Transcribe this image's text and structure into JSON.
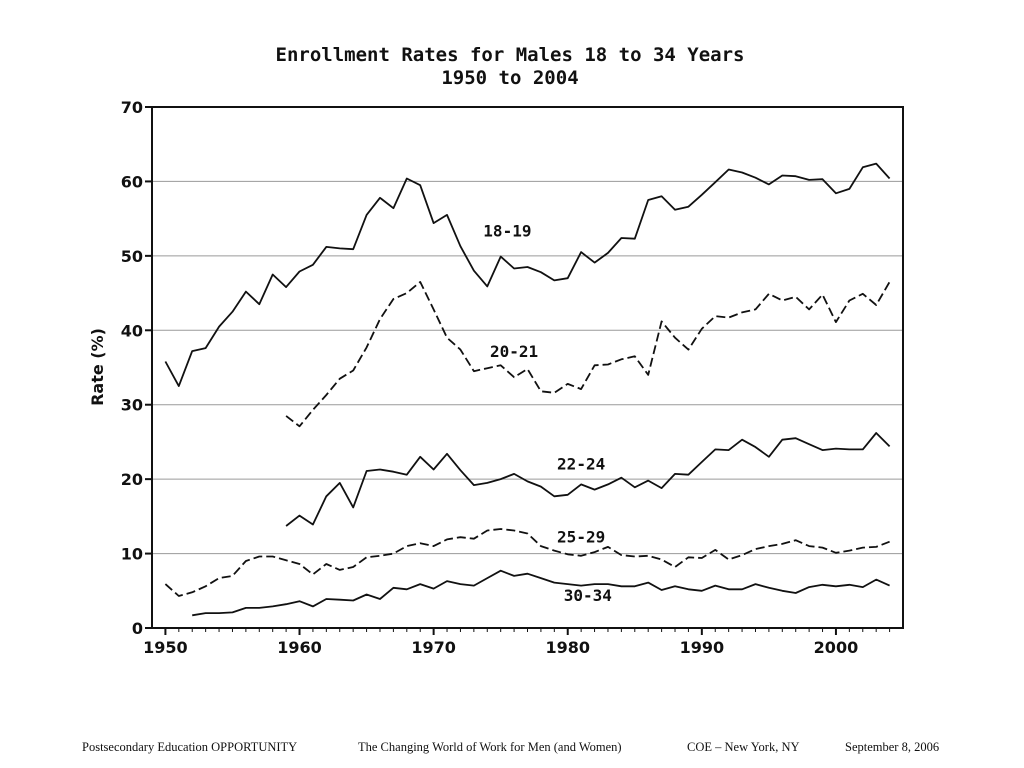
{
  "chart_data": {
    "type": "line",
    "title": "Enrollment Rates for Males 18 to 34 Years",
    "subtitle": "1950 to 2004",
    "xlabel": "",
    "ylabel": "Rate (%)",
    "xlim": [
      1949,
      2005
    ],
    "ylim": [
      0,
      70
    ],
    "xticks": [
      1950,
      1960,
      1970,
      1980,
      1990,
      2000
    ],
    "yticks": [
      0,
      10,
      20,
      30,
      40,
      50,
      60,
      70
    ],
    "grid": "horizontal",
    "series": [
      {
        "name": "18-19",
        "style": "solid",
        "points": [
          [
            1950,
            35.8
          ],
          [
            1951,
            32.5
          ],
          [
            1952,
            37.2
          ],
          [
            1953,
            37.6
          ],
          [
            1954,
            40.5
          ],
          [
            1955,
            42.5
          ],
          [
            1956,
            45.2
          ],
          [
            1957,
            43.5
          ],
          [
            1958,
            47.5
          ],
          [
            1959,
            45.8
          ],
          [
            1960,
            47.9
          ],
          [
            1961,
            48.8
          ],
          [
            1962,
            51.2
          ],
          [
            1963,
            51.0
          ],
          [
            1964,
            50.9
          ],
          [
            1965,
            55.5
          ],
          [
            1966,
            57.8
          ],
          [
            1967,
            56.4
          ],
          [
            1968,
            60.4
          ],
          [
            1969,
            59.5
          ],
          [
            1970,
            54.4
          ],
          [
            1971,
            55.5
          ],
          [
            1972,
            51.3
          ],
          [
            1973,
            48.0
          ],
          [
            1974,
            45.9
          ],
          [
            1975,
            49.9
          ],
          [
            1976,
            48.3
          ],
          [
            1977,
            48.5
          ],
          [
            1978,
            47.8
          ],
          [
            1979,
            46.7
          ],
          [
            1980,
            47.0
          ],
          [
            1981,
            50.5
          ],
          [
            1982,
            49.1
          ],
          [
            1983,
            50.4
          ],
          [
            1984,
            52.4
          ],
          [
            1985,
            52.3
          ],
          [
            1986,
            57.5
          ],
          [
            1987,
            58.0
          ],
          [
            1988,
            56.2
          ],
          [
            1989,
            56.6
          ],
          [
            1990,
            58.2
          ],
          [
            1991,
            59.9
          ],
          [
            1992,
            61.6
          ],
          [
            1993,
            61.2
          ],
          [
            1994,
            60.5
          ],
          [
            1995,
            59.6
          ],
          [
            1996,
            60.8
          ],
          [
            1997,
            60.7
          ],
          [
            1998,
            60.2
          ],
          [
            1999,
            60.3
          ],
          [
            2000,
            58.4
          ],
          [
            2001,
            59.0
          ],
          [
            2002,
            61.9
          ],
          [
            2003,
            62.4
          ],
          [
            2004,
            60.4
          ]
        ]
      },
      {
        "name": "20-21",
        "style": "dashed",
        "points": [
          [
            1959,
            28.5
          ],
          [
            1960,
            27.1
          ],
          [
            1961,
            29.3
          ],
          [
            1962,
            31.3
          ],
          [
            1963,
            33.5
          ],
          [
            1964,
            34.6
          ],
          [
            1965,
            37.7
          ],
          [
            1966,
            41.5
          ],
          [
            1967,
            44.2
          ],
          [
            1968,
            45.0
          ],
          [
            1969,
            46.5
          ],
          [
            1970,
            42.8
          ],
          [
            1971,
            39.0
          ],
          [
            1972,
            37.4
          ],
          [
            1973,
            34.5
          ],
          [
            1974,
            34.9
          ],
          [
            1975,
            35.3
          ],
          [
            1976,
            33.7
          ],
          [
            1977,
            34.8
          ],
          [
            1978,
            31.8
          ],
          [
            1979,
            31.6
          ],
          [
            1980,
            32.8
          ],
          [
            1981,
            32.1
          ],
          [
            1982,
            35.3
          ],
          [
            1983,
            35.4
          ],
          [
            1984,
            36.1
          ],
          [
            1985,
            36.5
          ],
          [
            1986,
            34.0
          ],
          [
            1987,
            41.2
          ],
          [
            1988,
            39.0
          ],
          [
            1989,
            37.4
          ],
          [
            1990,
            40.2
          ],
          [
            1991,
            41.9
          ],
          [
            1992,
            41.7
          ],
          [
            1993,
            42.4
          ],
          [
            1994,
            42.8
          ],
          [
            1995,
            44.9
          ],
          [
            1996,
            44.0
          ],
          [
            1997,
            44.5
          ],
          [
            1998,
            42.8
          ],
          [
            1999,
            44.8
          ],
          [
            2000,
            41.1
          ],
          [
            2001,
            44.0
          ],
          [
            2002,
            44.9
          ],
          [
            2003,
            43.4
          ],
          [
            2004,
            46.5
          ]
        ]
      },
      {
        "name": "22-24",
        "style": "solid",
        "points": [
          [
            1959,
            13.7
          ],
          [
            1960,
            15.1
          ],
          [
            1961,
            13.9
          ],
          [
            1962,
            17.7
          ],
          [
            1963,
            19.5
          ],
          [
            1964,
            16.2
          ],
          [
            1965,
            21.1
          ],
          [
            1966,
            21.3
          ],
          [
            1967,
            21.0
          ],
          [
            1968,
            20.6
          ],
          [
            1969,
            23.0
          ],
          [
            1970,
            21.3
          ],
          [
            1971,
            23.4
          ],
          [
            1972,
            21.2
          ],
          [
            1973,
            19.2
          ],
          [
            1974,
            19.5
          ],
          [
            1975,
            20.0
          ],
          [
            1976,
            20.7
          ],
          [
            1977,
            19.7
          ],
          [
            1978,
            19.0
          ],
          [
            1979,
            17.7
          ],
          [
            1980,
            17.9
          ],
          [
            1981,
            19.3
          ],
          [
            1982,
            18.6
          ],
          [
            1983,
            19.3
          ],
          [
            1984,
            20.2
          ],
          [
            1985,
            18.9
          ],
          [
            1986,
            19.8
          ],
          [
            1987,
            18.8
          ],
          [
            1988,
            20.7
          ],
          [
            1989,
            20.6
          ],
          [
            1990,
            22.3
          ],
          [
            1991,
            24.0
          ],
          [
            1992,
            23.9
          ],
          [
            1993,
            25.3
          ],
          [
            1994,
            24.3
          ],
          [
            1995,
            23.0
          ],
          [
            1996,
            25.3
          ],
          [
            1997,
            25.5
          ],
          [
            1998,
            24.7
          ],
          [
            1999,
            23.9
          ],
          [
            2000,
            24.1
          ],
          [
            2001,
            24.0
          ],
          [
            2002,
            24.0
          ],
          [
            2003,
            26.2
          ],
          [
            2004,
            24.4
          ]
        ]
      },
      {
        "name": "25-29",
        "style": "dashed",
        "points": [
          [
            1950,
            5.9
          ],
          [
            1951,
            4.3
          ],
          [
            1952,
            4.8
          ],
          [
            1953,
            5.6
          ],
          [
            1954,
            6.7
          ],
          [
            1955,
            7.0
          ],
          [
            1956,
            9.0
          ],
          [
            1957,
            9.6
          ],
          [
            1958,
            9.6
          ],
          [
            1959,
            9.1
          ],
          [
            1960,
            8.6
          ],
          [
            1961,
            7.2
          ],
          [
            1962,
            8.6
          ],
          [
            1963,
            7.8
          ],
          [
            1964,
            8.2
          ],
          [
            1965,
            9.5
          ],
          [
            1966,
            9.7
          ],
          [
            1967,
            10.0
          ],
          [
            1968,
            11.0
          ],
          [
            1969,
            11.4
          ],
          [
            1970,
            11.0
          ],
          [
            1971,
            11.9
          ],
          [
            1972,
            12.2
          ],
          [
            1973,
            12.0
          ],
          [
            1974,
            13.1
          ],
          [
            1975,
            13.3
          ],
          [
            1976,
            13.1
          ],
          [
            1977,
            12.7
          ],
          [
            1978,
            11.0
          ],
          [
            1979,
            10.4
          ],
          [
            1980,
            9.9
          ],
          [
            1981,
            9.7
          ],
          [
            1982,
            10.2
          ],
          [
            1983,
            10.9
          ],
          [
            1984,
            9.8
          ],
          [
            1985,
            9.6
          ],
          [
            1986,
            9.7
          ],
          [
            1987,
            9.2
          ],
          [
            1988,
            8.2
          ],
          [
            1989,
            9.5
          ],
          [
            1990,
            9.4
          ],
          [
            1991,
            10.5
          ],
          [
            1992,
            9.2
          ],
          [
            1993,
            9.8
          ],
          [
            1994,
            10.6
          ],
          [
            1995,
            11.0
          ],
          [
            1996,
            11.3
          ],
          [
            1997,
            11.8
          ],
          [
            1998,
            11.0
          ],
          [
            1999,
            10.8
          ],
          [
            2000,
            10.1
          ],
          [
            2001,
            10.4
          ],
          [
            2002,
            10.8
          ],
          [
            2003,
            10.9
          ],
          [
            2004,
            11.6
          ]
        ]
      },
      {
        "name": "30-34",
        "style": "solid",
        "points": [
          [
            1952,
            1.7
          ],
          [
            1953,
            2.0
          ],
          [
            1954,
            2.0
          ],
          [
            1955,
            2.1
          ],
          [
            1956,
            2.7
          ],
          [
            1957,
            2.7
          ],
          [
            1958,
            2.9
          ],
          [
            1959,
            3.2
          ],
          [
            1960,
            3.6
          ],
          [
            1961,
            2.9
          ],
          [
            1962,
            3.9
          ],
          [
            1963,
            3.8
          ],
          [
            1964,
            3.7
          ],
          [
            1965,
            4.5
          ],
          [
            1966,
            3.9
          ],
          [
            1967,
            5.4
          ],
          [
            1968,
            5.2
          ],
          [
            1969,
            5.9
          ],
          [
            1970,
            5.3
          ],
          [
            1971,
            6.3
          ],
          [
            1972,
            5.9
          ],
          [
            1973,
            5.7
          ],
          [
            1974,
            6.7
          ],
          [
            1975,
            7.7
          ],
          [
            1976,
            7.0
          ],
          [
            1977,
            7.3
          ],
          [
            1978,
            6.7
          ],
          [
            1979,
            6.1
          ],
          [
            1980,
            5.9
          ],
          [
            1981,
            5.7
          ],
          [
            1982,
            5.9
          ],
          [
            1983,
            5.9
          ],
          [
            1984,
            5.6
          ],
          [
            1985,
            5.6
          ],
          [
            1986,
            6.1
          ],
          [
            1987,
            5.1
          ],
          [
            1988,
            5.6
          ],
          [
            1989,
            5.2
          ],
          [
            1990,
            5.0
          ],
          [
            1991,
            5.7
          ],
          [
            1992,
            5.2
          ],
          [
            1993,
            5.2
          ],
          [
            1994,
            5.9
          ],
          [
            1995,
            5.4
          ],
          [
            1996,
            5.0
          ],
          [
            1997,
            4.7
          ],
          [
            1998,
            5.5
          ],
          [
            1999,
            5.8
          ],
          [
            2000,
            5.6
          ],
          [
            2001,
            5.8
          ],
          [
            2002,
            5.5
          ],
          [
            2003,
            6.5
          ],
          [
            2004,
            5.7
          ]
        ]
      }
    ],
    "annotations": [
      {
        "text": "18-19",
        "x": 1975.5,
        "y": 52.6
      },
      {
        "text": "20-21",
        "x": 1976.0,
        "y": 36.4
      },
      {
        "text": "22-24",
        "x": 1981.0,
        "y": 21.3
      },
      {
        "text": "25-29",
        "x": 1981.0,
        "y": 11.5
      },
      {
        "text": "30-34",
        "x": 1981.5,
        "y": 3.6
      }
    ]
  },
  "footer": {
    "left": "Postsecondary Education OPPORTUNITY",
    "center": "The Changing World of Work for Men (and Women)",
    "right": "COE – New York, NY",
    "date": "September 8, 2006"
  }
}
